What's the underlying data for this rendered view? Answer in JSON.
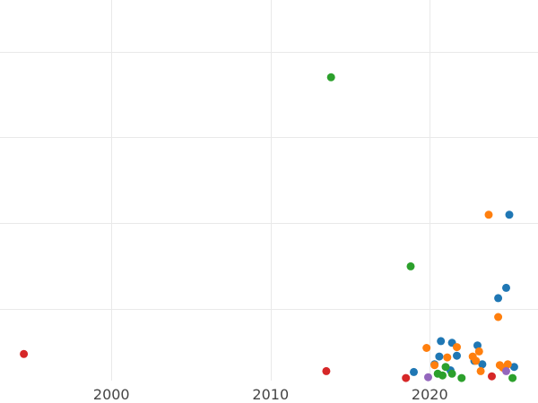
{
  "chart_data": {
    "type": "scatter",
    "title": "",
    "xlabel": "",
    "ylabel": "",
    "xlim": [
      1993,
      2026.8
    ],
    "ylim": [
      -0.03,
      4.4
    ],
    "grid": true,
    "x_ticks": [
      {
        "value": 2000,
        "label": "2000"
      },
      {
        "value": 2010,
        "label": "2010"
      },
      {
        "value": 2020,
        "label": "2020"
      }
    ],
    "y_gridlines": [
      0.8,
      1.8,
      2.8,
      3.8
    ],
    "colors": {
      "blue": "#1f77b4",
      "orange": "#ff7f0e",
      "green": "#2ca02c",
      "red": "#d62728",
      "purple": "#9467bd"
    },
    "series": [
      {
        "color_key": "blue",
        "x": [
          2025.0,
          2024.8,
          2024.3,
          2023.0,
          2021.4,
          2020.7,
          2020.6,
          2021.7,
          2019.0,
          2020.3,
          2022.8,
          2023.3,
          2025.3,
          2021.3
        ],
        "y": [
          1.9,
          1.05,
          0.93,
          0.38,
          0.41,
          0.43,
          0.25,
          0.26,
          0.07,
          0.16,
          0.2,
          0.16,
          0.13,
          0.09
        ]
      },
      {
        "color_key": "orange",
        "x": [
          2023.7,
          2024.3,
          2019.8,
          2021.7,
          2023.1,
          2022.7,
          2021.1,
          2020.3,
          2024.4,
          2024.9,
          2023.2,
          2024.6,
          2022.9
        ],
        "y": [
          1.9,
          0.71,
          0.35,
          0.36,
          0.31,
          0.25,
          0.24,
          0.15,
          0.15,
          0.16,
          0.08,
          0.12,
          0.2
        ]
      },
      {
        "color_key": "green",
        "x": [
          2013.8,
          2018.8,
          2020.5,
          2021.0,
          2020.8,
          2021.4,
          2022.0,
          2025.2
        ],
        "y": [
          3.5,
          1.3,
          0.05,
          0.13,
          0.03,
          0.05,
          0.0,
          0.0
        ]
      },
      {
        "color_key": "red",
        "x": [
          1994.5,
          2013.5,
          2018.5,
          2023.9
        ],
        "y": [
          0.28,
          0.08,
          0.0,
          0.02
        ]
      },
      {
        "color_key": "purple",
        "x": [
          2019.9,
          2024.8
        ],
        "y": [
          0.01,
          0.08
        ]
      }
    ]
  }
}
